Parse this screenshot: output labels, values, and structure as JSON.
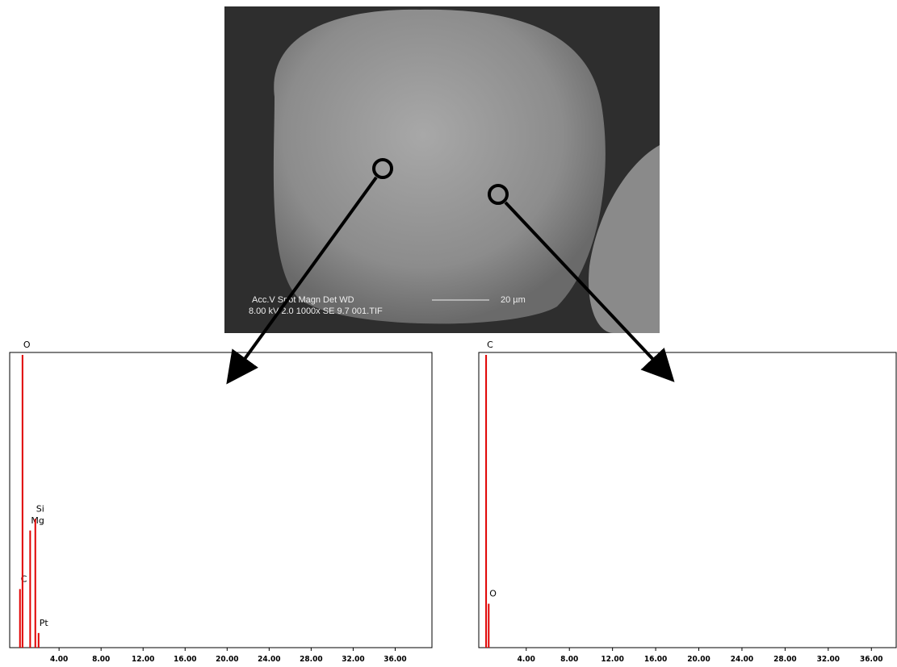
{
  "sem_image": {
    "line1": "Acc.V   Spot Magn    Det  WD",
    "line2": "8.00 kV 2.0   1000x    SE   9.7   001.TIF",
    "scale": "20 µm"
  },
  "chart_data": [
    {
      "type": "spectrum",
      "color": "#e00000",
      "xlim": [
        -0.7,
        39.5
      ],
      "ylim": [
        0,
        100
      ],
      "xticks": [
        {
          "value": 4,
          "label": "4.00"
        },
        {
          "value": 8,
          "label": "8.00"
        },
        {
          "value": 12,
          "label": "12.00"
        },
        {
          "value": 16,
          "label": "16.00"
        },
        {
          "value": 20,
          "label": "20.00"
        },
        {
          "value": 24,
          "label": "24.00"
        },
        {
          "value": 28,
          "label": "28.00"
        },
        {
          "value": 32,
          "label": "32.00"
        },
        {
          "value": 36,
          "label": "36.00"
        }
      ],
      "x": [
        0.28,
        0.52,
        1.25,
        1.74,
        2.05
      ],
      "values": [
        20,
        100,
        40,
        44,
        5
      ],
      "peak_labels": [
        "C",
        "O",
        "Mg",
        "Si",
        "Pt"
      ]
    },
    {
      "type": "spectrum",
      "color": "#e00000",
      "xlim": [
        -0.4,
        38.3
      ],
      "ylim": [
        0,
        100
      ],
      "xticks": [
        {
          "value": 4,
          "label": "4.00"
        },
        {
          "value": 8,
          "label": "8.00"
        },
        {
          "value": 12,
          "label": "12.00"
        },
        {
          "value": 16,
          "label": "16.00"
        },
        {
          "value": 20,
          "label": "20.00"
        },
        {
          "value": 24,
          "label": "24.00"
        },
        {
          "value": 28,
          "label": "28.00"
        },
        {
          "value": 32,
          "label": "32.00"
        },
        {
          "value": 36,
          "label": "36.00"
        }
      ],
      "x": [
        0.28,
        0.52
      ],
      "values": [
        100,
        15
      ],
      "peak_labels": [
        "C",
        "O"
      ]
    }
  ]
}
